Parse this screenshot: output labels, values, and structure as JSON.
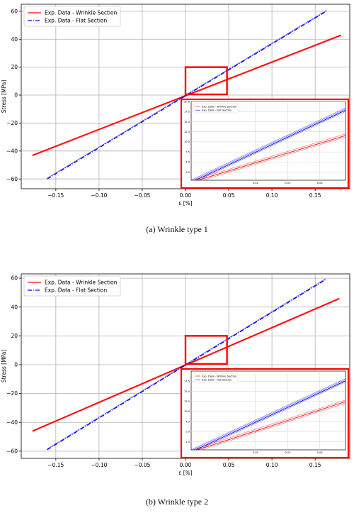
{
  "chart_data": [
    {
      "type": "line",
      "caption": "(a) Wrinkle type 1",
      "xlabel": "ε [%]",
      "ylabel": "Stress [MPa]",
      "xlim": [
        -0.19,
        0.19
      ],
      "ylim": [
        -67,
        65
      ],
      "xticks": [
        -0.15,
        -0.1,
        -0.05,
        0.0,
        0.05,
        0.1,
        0.15
      ],
      "xtick_labels": [
        "−0.15",
        "−0.10",
        "−0.05",
        "0.00",
        "0.05",
        "0.10",
        "0.15"
      ],
      "yticks": [
        -60,
        -40,
        -20,
        0,
        20,
        40,
        60
      ],
      "ytick_labels": [
        "−60",
        "−40",
        "−20",
        "0",
        "20",
        "40",
        "60"
      ],
      "grid": true,
      "legend_position": "top-left",
      "colors": {
        "wrinkle": "#ff0000",
        "flat": "#0000ff",
        "zoom_box": "#ff0000"
      },
      "series": [
        {
          "name": "Exp. Data - Wrinkle Section",
          "style": "solid",
          "x": [
            -0.177,
            0.18
          ],
          "y": [
            -43,
            43
          ]
        },
        {
          "name": "Exp. Data - Flat Section",
          "style": "dashdot",
          "x": [
            -0.16,
            0.163
          ],
          "y": [
            -60,
            60
          ]
        }
      ],
      "zoom_region": {
        "x": [
          0.0,
          0.048
        ],
        "y": [
          0.5,
          20
        ]
      },
      "inset": {
        "xticks": [
          0.02,
          0.03,
          0.04
        ],
        "xtick_labels": [
          "0.02",
          "0.03",
          "0.04"
        ],
        "yticks": [
          2.5,
          5.0,
          7.5,
          10.0,
          12.5,
          15.0,
          17.5,
          20.0
        ],
        "ytick_labels": [
          "2.5",
          "5.0",
          "7.5",
          "10.0",
          "12.5",
          "15.0",
          "17.5",
          "20.0"
        ],
        "legend": [
          "Exp. Data - Wrinkle Section",
          "Exp. Data - Flat Section"
        ]
      }
    },
    {
      "type": "line",
      "caption": "(b) Wrinkle type 2",
      "xlabel": "ε [%]",
      "ylabel": "Stress [MPa]",
      "xlim": [
        -0.19,
        0.19
      ],
      "ylim": [
        -65,
        63
      ],
      "xticks": [
        -0.15,
        -0.1,
        -0.05,
        0.0,
        0.05,
        0.1,
        0.15
      ],
      "xtick_labels": [
        "−0.15",
        "−0.10",
        "−0.05",
        "0.00",
        "0.05",
        "0.10",
        "0.15"
      ],
      "yticks": [
        -60,
        -40,
        -20,
        0,
        20,
        40,
        60
      ],
      "ytick_labels": [
        "−60",
        "−40",
        "−20",
        "0",
        "20",
        "40",
        "60"
      ],
      "grid": true,
      "legend_position": "top-left",
      "colors": {
        "wrinkle": "#ff0000",
        "flat": "#0000ff",
        "zoom_box": "#ff0000"
      },
      "series": [
        {
          "name": "Exp. Data - Wrinkle Section",
          "style": "solid",
          "x": [
            -0.177,
            0.178
          ],
          "y": [
            -46,
            46
          ]
        },
        {
          "name": "Exp. Data - Flat Section",
          "style": "dashdot",
          "x": [
            -0.16,
            0.162
          ],
          "y": [
            -59,
            59
          ]
        }
      ],
      "zoom_region": {
        "x": [
          0.0,
          0.048
        ],
        "y": [
          0.5,
          20
        ]
      },
      "inset": {
        "xticks": [
          0.02,
          0.03,
          0.04
        ],
        "xtick_labels": [
          "0.02",
          "0.03",
          "0.04"
        ],
        "yticks": [
          2.5,
          5.0,
          7.5,
          10.0,
          12.5,
          15.0,
          17.5
        ],
        "ytick_labels": [
          "2.5",
          "5.0",
          "7.5",
          "10.0",
          "12.5",
          "15.0",
          "17.5"
        ],
        "legend": [
          "Exp. Data - Wrinkle Section",
          "Exp. Data - Flat Section"
        ]
      }
    }
  ]
}
